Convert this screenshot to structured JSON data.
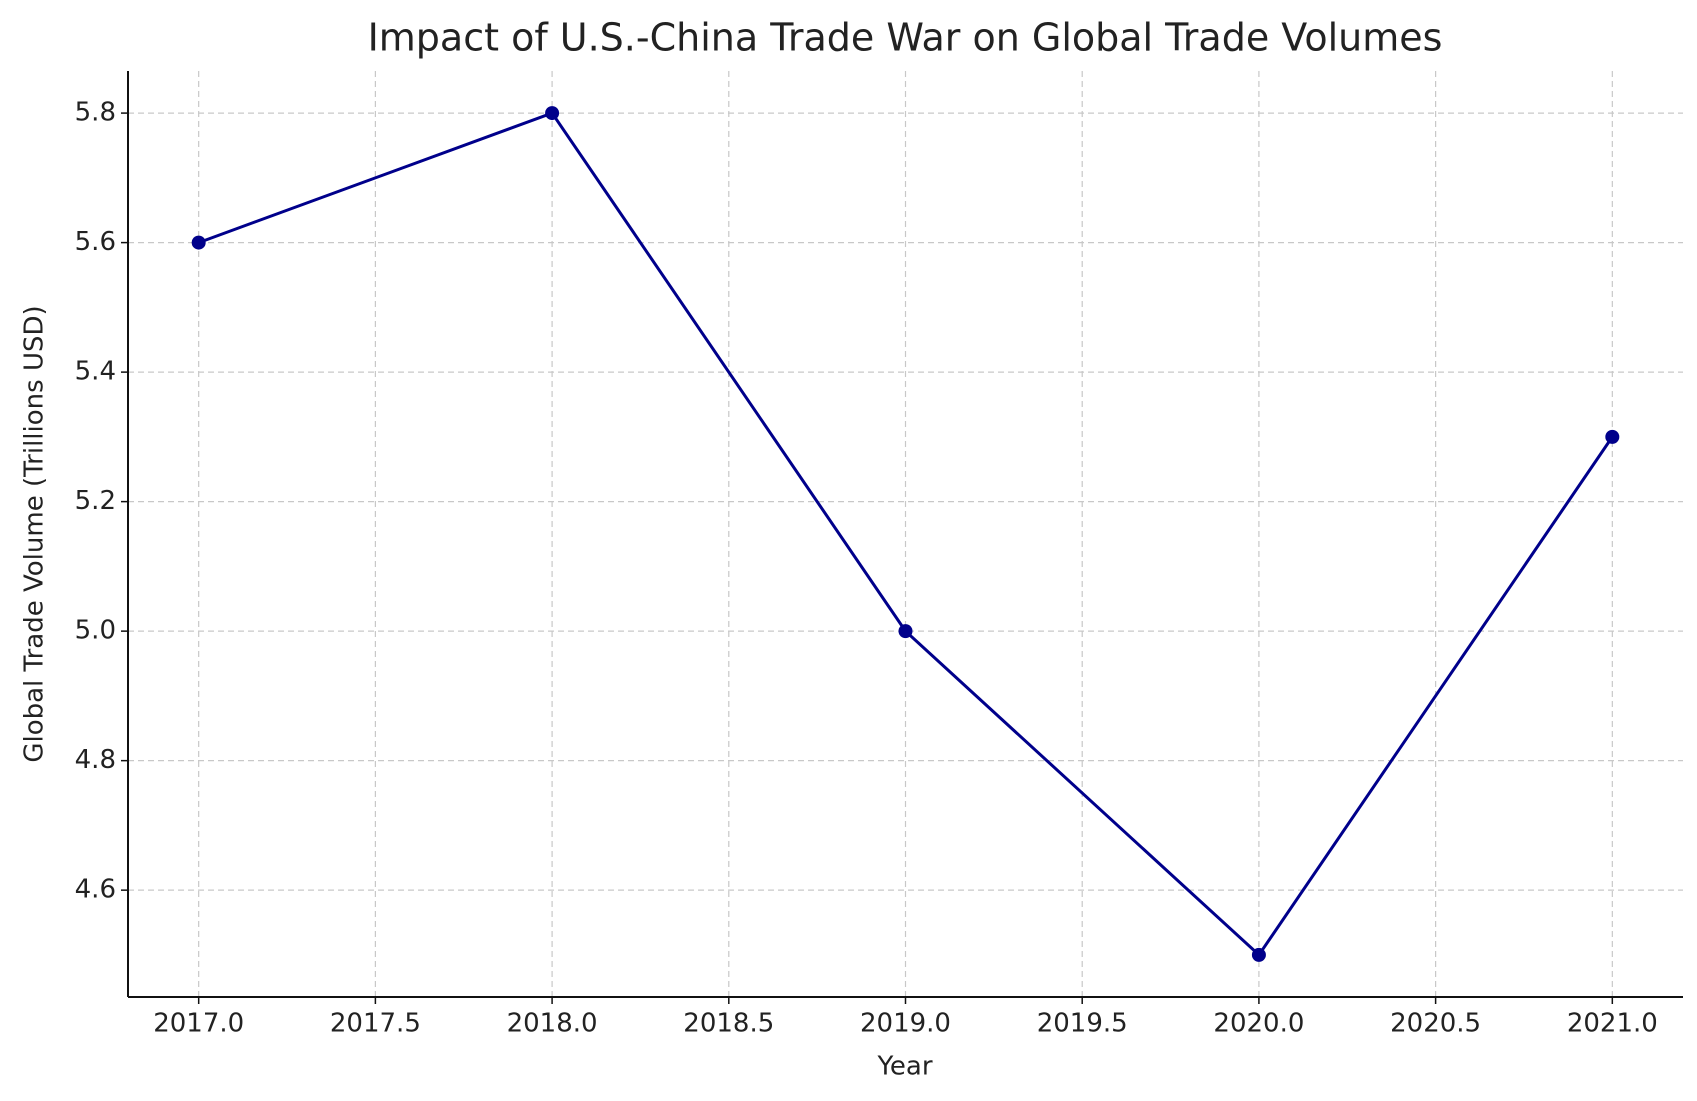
{
  "chart_data": {
    "type": "line",
    "title": "Impact of U.S.-China Trade War on Global Trade Volumes",
    "x_label": "Year",
    "y_label": "Global Trade Volume (Trillions USD)",
    "x": [
      2017,
      2018,
      2019,
      2020,
      2021
    ],
    "series": [
      {
        "name": "Global Trade Volume",
        "color": "#00008b",
        "values": [
          5.6,
          5.8,
          5.0,
          4.5,
          5.3
        ]
      }
    ],
    "xlim": [
      2016.8,
      2021.2
    ],
    "xticks": [
      {
        "value": 2017,
        "label": "2017.0"
      },
      2017.5,
      {
        "value": 2018,
        "label": "2018.0"
      },
      2018.5,
      {
        "value": 2019,
        "label": "2019.0"
      },
      2019.5,
      {
        "value": 2020,
        "label": "2020.0"
      },
      2020.5,
      {
        "value": 2021,
        "label": "2021.0"
      }
    ],
    "ylim": [
      4.435,
      5.865
    ],
    "yticks": [
      4.6,
      4.8,
      {
        "value": 5,
        "label": "5.0"
      },
      5.2,
      5.4,
      5.6,
      5.8
    ],
    "grid": true,
    "markers": true
  }
}
